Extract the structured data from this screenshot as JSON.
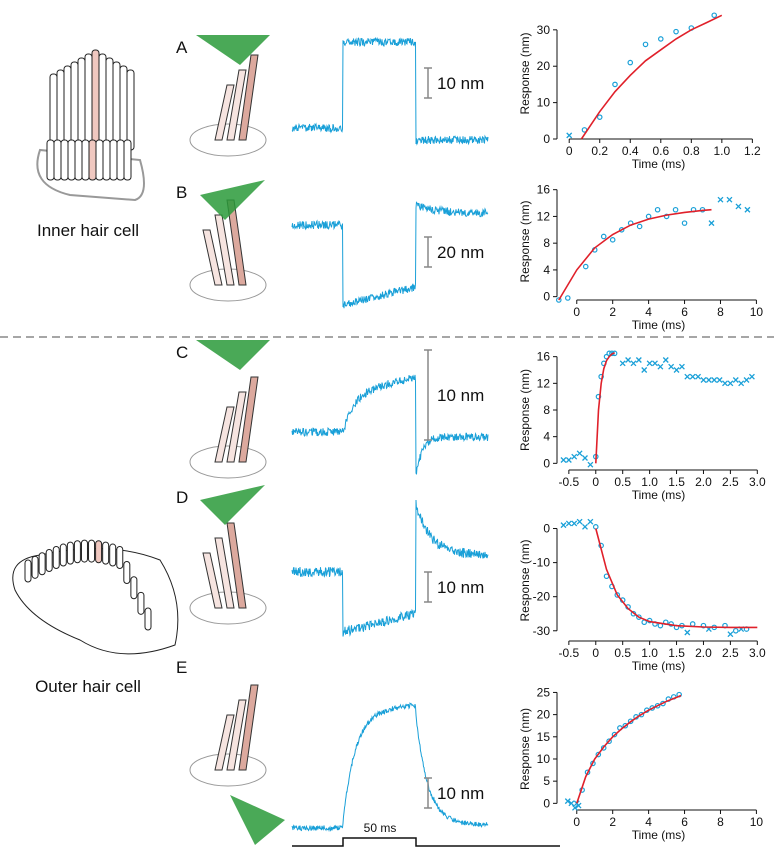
{
  "labels": {
    "inner": "Inner hair cell",
    "outer": "Outer hair cell",
    "time_bar": "50 ms"
  },
  "panels": [
    {
      "letter": "A",
      "scale_bar": "10 nm"
    },
    {
      "letter": "B",
      "scale_bar": "20 nm"
    },
    {
      "letter": "C",
      "scale_bar": "10 nm"
    },
    {
      "letter": "D",
      "scale_bar": "10 nm"
    },
    {
      "letter": "E",
      "scale_bar": "10 nm"
    }
  ],
  "chart_data": [
    {
      "type": "scatter",
      "xlabel": "Time (ms)",
      "ylabel": "Response (nm)",
      "xlim": [
        -0.08,
        1.25
      ],
      "ylim": [
        0,
        36
      ],
      "xticks": [
        0,
        0.2,
        0.4,
        0.6,
        0.8,
        {
          "value": 1,
          "label": "1.0"
        },
        1.2
      ],
      "yticks": [
        0,
        10,
        20,
        30
      ],
      "series": [
        {
          "marker": "x",
          "color": "#1aa0d8",
          "x": [
            0
          ],
          "values": [
            1
          ]
        },
        {
          "marker": "o",
          "color": "#1aa0d8",
          "x": [
            0.1,
            0.2,
            0.3,
            0.4,
            0.5,
            0.6,
            0.7,
            0.8,
            0.95
          ],
          "values": [
            2.5,
            6,
            15,
            21,
            26,
            27.5,
            29.5,
            30.5,
            34
          ]
        },
        {
          "marker": "line",
          "color": "#e0202a",
          "x": [
            0.08,
            0.2,
            0.3,
            0.4,
            0.5,
            0.6,
            0.7,
            0.8,
            0.9,
            1.0
          ],
          "values": [
            0,
            7.5,
            13,
            17.5,
            21.5,
            24.5,
            27.5,
            30,
            32,
            34
          ]
        }
      ]
    },
    {
      "type": "scatter",
      "xlabel": "Time (ms)",
      "ylabel": "Response (nm)",
      "xlim": [
        -1.1,
        10.2
      ],
      "ylim": [
        -0.5,
        17
      ],
      "xticks": [
        0,
        2,
        4,
        6,
        8,
        10
      ],
      "yticks": [
        0,
        4,
        8,
        12,
        16
      ],
      "series": [
        {
          "marker": "o",
          "color": "#1aa0d8",
          "x": [
            -1,
            -0.5,
            0.5,
            1,
            1.5,
            2,
            2.5,
            3,
            3.5,
            4,
            4.5,
            5,
            5.5,
            6,
            6.5,
            7
          ],
          "values": [
            -0.5,
            -0.2,
            4.5,
            7,
            9,
            8.5,
            10,
            11,
            10.5,
            12,
            13,
            12,
            13,
            11,
            13,
            13
          ]
        },
        {
          "marker": "x",
          "color": "#1aa0d8",
          "x": [
            7.5,
            8,
            8.5,
            9,
            9.5
          ],
          "values": [
            11,
            14.5,
            14.5,
            13.5,
            13
          ]
        },
        {
          "marker": "line",
          "color": "#e0202a",
          "x": [
            -1,
            0,
            1,
            2,
            3,
            4,
            5,
            6,
            7,
            7.5
          ],
          "values": [
            -0.5,
            4,
            7.3,
            9.3,
            10.7,
            11.6,
            12.2,
            12.6,
            12.9,
            13
          ]
        }
      ]
    },
    {
      "type": "scatter",
      "xlabel": "Time (ms)",
      "ylabel": "Response (nm)",
      "xlim": [
        -0.72,
        3.05
      ],
      "ylim": [
        -1,
        17
      ],
      "xticks": [
        -0.5,
        0,
        0.5,
        {
          "value": 1,
          "label": "1.0"
        },
        1.5,
        {
          "value": 2,
          "label": "2.0"
        },
        2.5,
        {
          "value": 3,
          "label": "3.0"
        }
      ],
      "yticks": [
        0,
        4,
        8,
        12,
        16
      ],
      "series": [
        {
          "marker": "x",
          "color": "#1aa0d8",
          "x": [
            -0.6,
            -0.5,
            -0.4,
            -0.3,
            -0.2,
            -0.1
          ],
          "values": [
            0.5,
            0.5,
            1,
            1.5,
            0.8,
            -0.2
          ]
        },
        {
          "marker": "o",
          "color": "#1aa0d8",
          "x": [
            0,
            0.05,
            0.1,
            0.15,
            0.2,
            0.25,
            0.3,
            0.35
          ],
          "values": [
            1,
            10,
            13,
            15,
            16,
            16.5,
            16.5,
            16.5
          ]
        },
        {
          "marker": "x",
          "color": "#1aa0d8",
          "x": [
            0.5,
            0.6,
            0.7,
            0.8,
            0.9,
            1.0,
            1.1,
            1.2,
            1.3,
            1.4,
            1.5,
            1.6,
            1.7,
            1.8,
            1.9,
            2.0,
            2.1,
            2.2,
            2.3,
            2.4,
            2.5,
            2.6,
            2.7,
            2.8,
            2.9
          ],
          "values": [
            15,
            15.5,
            15,
            15.5,
            14,
            15,
            15,
            14.5,
            15.5,
            14.5,
            14,
            14.5,
            13,
            13,
            13,
            12.5,
            12.5,
            12.5,
            12.5,
            12,
            12,
            12.5,
            12,
            12.5,
            13
          ]
        },
        {
          "marker": "line",
          "color": "#e0202a",
          "x": [
            0,
            0.05,
            0.1,
            0.15,
            0.2,
            0.25,
            0.3,
            0.35
          ],
          "values": [
            0,
            8,
            12,
            14.2,
            15.4,
            16,
            16.4,
            16.6
          ]
        }
      ]
    },
    {
      "type": "scatter",
      "xlabel": "Time (ms)",
      "ylabel": "Response (nm)",
      "xlim": [
        -0.72,
        3.05
      ],
      "ylim": [
        -33,
        2.5
      ],
      "xticks": [
        -0.5,
        0,
        0.5,
        {
          "value": 1,
          "label": "1.0"
        },
        1.5,
        {
          "value": 2,
          "label": "2.0"
        },
        2.5,
        {
          "value": 3,
          "label": "3.0"
        }
      ],
      "yticks": [
        0,
        -10,
        -20,
        -30
      ],
      "series": [
        {
          "marker": "x",
          "color": "#1aa0d8",
          "x": [
            -0.6,
            -0.5,
            -0.4,
            -0.3,
            -0.2,
            -0.1
          ],
          "values": [
            1,
            1.5,
            1.5,
            2,
            0.5,
            2
          ]
        },
        {
          "marker": "o",
          "color": "#1aa0d8",
          "x": [
            0,
            0.1,
            0.2,
            0.3,
            0.4,
            0.5,
            0.6,
            0.7,
            0.8,
            0.9,
            1.0,
            1.1,
            1.2,
            1.3,
            1.4,
            1.5,
            1.6,
            1.8,
            2.0,
            2.2,
            2.4,
            2.6,
            2.8
          ],
          "values": [
            0.5,
            -5,
            -14,
            -17,
            -19.5,
            -21,
            -23,
            -25,
            -26,
            -27.5,
            -27,
            -28,
            -28.5,
            -27.5,
            -28,
            -29,
            -28.5,
            -28,
            -28.5,
            -29,
            -28.5,
            -30,
            -29.5
          ]
        },
        {
          "marker": "x",
          "color": "#1aa0d8",
          "x": [
            1.7,
            2.1,
            2.5,
            2.7
          ],
          "values": [
            -30.5,
            -29.5,
            -31,
            -29.5
          ]
        },
        {
          "marker": "line",
          "color": "#e0202a",
          "x": [
            0,
            0.2,
            0.4,
            0.6,
            0.8,
            1.0,
            1.5,
            2,
            2.5,
            3
          ],
          "values": [
            0,
            -12,
            -19.5,
            -23.5,
            -26,
            -27.3,
            -28.5,
            -28.9,
            -29,
            -29
          ]
        }
      ]
    },
    {
      "type": "scatter",
      "xlabel": "Time (ms)",
      "ylabel": "Response (nm)",
      "xlim": [
        -1.1,
        10.2
      ],
      "ylim": [
        -1.5,
        26
      ],
      "xticks": [
        0,
        2,
        4,
        6,
        8,
        10
      ],
      "yticks": [
        0,
        5,
        10,
        15,
        20,
        25
      ],
      "series": [
        {
          "marker": "x",
          "color": "#1aa0d8",
          "x": [
            -0.5,
            -0.3,
            -0.1,
            0,
            0.1
          ],
          "values": [
            0.5,
            0,
            -1,
            0,
            -0.5
          ]
        },
        {
          "marker": "o",
          "color": "#1aa0d8",
          "x": [
            0.3,
            0.6,
            0.9,
            1.2,
            1.5,
            1.8,
            2.1,
            2.4,
            2.7,
            3.0,
            3.3,
            3.6,
            3.9,
            4.2,
            4.5,
            4.8,
            5.1,
            5.4,
            5.7
          ],
          "values": [
            3,
            7,
            9,
            11,
            12.5,
            14,
            15.5,
            17,
            17.5,
            18.5,
            19.5,
            20,
            21,
            21.5,
            22,
            22.5,
            23.5,
            24,
            24.5
          ]
        },
        {
          "marker": "line",
          "color": "#e0202a",
          "x": [
            0,
            0.5,
            1,
            1.5,
            2,
            2.5,
            3,
            3.5,
            4,
            4.5,
            5,
            5.5,
            5.8
          ],
          "values": [
            0,
            6,
            10,
            12.7,
            15,
            16.8,
            18.4,
            19.8,
            21,
            22,
            23,
            23.8,
            24.3
          ]
        }
      ]
    }
  ]
}
